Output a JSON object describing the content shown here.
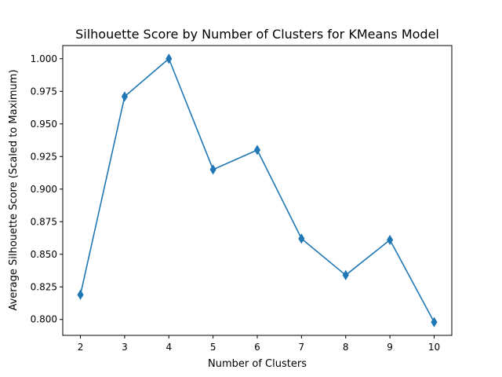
{
  "chart_data": {
    "type": "line",
    "title": "Silhouette Score by Number of Clusters for KMeans Model",
    "xlabel": "Number of Clusters",
    "ylabel": "Average Silhouette Score (Scaled to Maximum)",
    "x": [
      2,
      3,
      4,
      5,
      6,
      7,
      8,
      9,
      10
    ],
    "series": [
      {
        "values": [
          0.819,
          0.971,
          1.0,
          0.915,
          0.93,
          0.862,
          0.834,
          0.861,
          0.798
        ],
        "color": "#1f77b4",
        "marker": "thin-diamond"
      }
    ],
    "xlim": [
      1.6,
      10.4
    ],
    "ylim": [
      0.7878,
      1.0101
    ],
    "xticks": [
      2,
      3,
      4,
      5,
      6,
      7,
      8,
      9,
      10
    ],
    "yticks": [
      0.8,
      0.825,
      0.85,
      0.875,
      0.9,
      0.925,
      0.95,
      0.975,
      1.0
    ],
    "ytick_labels": [
      "0.800",
      "0.825",
      "0.850",
      "0.875",
      "0.900",
      "0.925",
      "0.950",
      "0.975",
      "1.000"
    ],
    "grid": false,
    "legend": null
  }
}
